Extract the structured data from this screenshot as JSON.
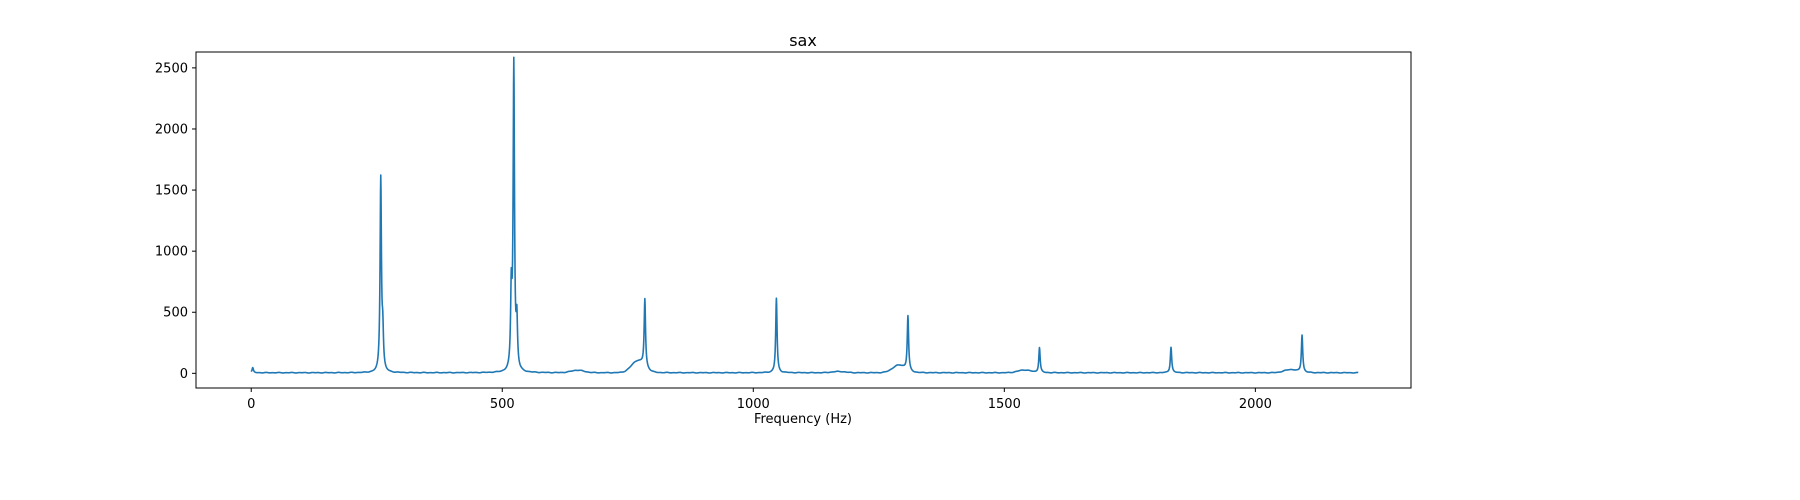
{
  "chart_data": {
    "type": "line",
    "title": "sax",
    "xlabel": "Frequency (Hz)",
    "ylabel": "",
    "xlim": [
      -110,
      2310
    ],
    "ylim": [
      -120,
      2630
    ],
    "xticks": [
      0,
      500,
      1000,
      1500,
      2000
    ],
    "yticks": [
      0,
      500,
      1000,
      1500,
      2000,
      2500
    ],
    "grid": false,
    "line_color": "#1f77b4",
    "noise_floor": 5,
    "x_range": [
      0,
      2205
    ],
    "peaks": [
      {
        "f": 3,
        "a": 40
      },
      {
        "f": 258,
        "a": 1580
      },
      {
        "f": 262,
        "a": 290
      },
      {
        "f": 518,
        "a": 620
      },
      {
        "f": 523,
        "a": 2500
      },
      {
        "f": 529,
        "a": 380
      },
      {
        "f": 784,
        "a": 555
      },
      {
        "f": 1046,
        "a": 610
      },
      {
        "f": 1308,
        "a": 445
      },
      {
        "f": 1570,
        "a": 205
      },
      {
        "f": 1832,
        "a": 210
      },
      {
        "f": 2093,
        "a": 305
      }
    ],
    "bumps": [
      {
        "f": 650,
        "a": 20
      },
      {
        "f": 770,
        "a": 95
      },
      {
        "f": 1170,
        "a": 10
      },
      {
        "f": 1290,
        "a": 60
      },
      {
        "f": 1540,
        "a": 22
      },
      {
        "f": 2070,
        "a": 25
      }
    ]
  }
}
